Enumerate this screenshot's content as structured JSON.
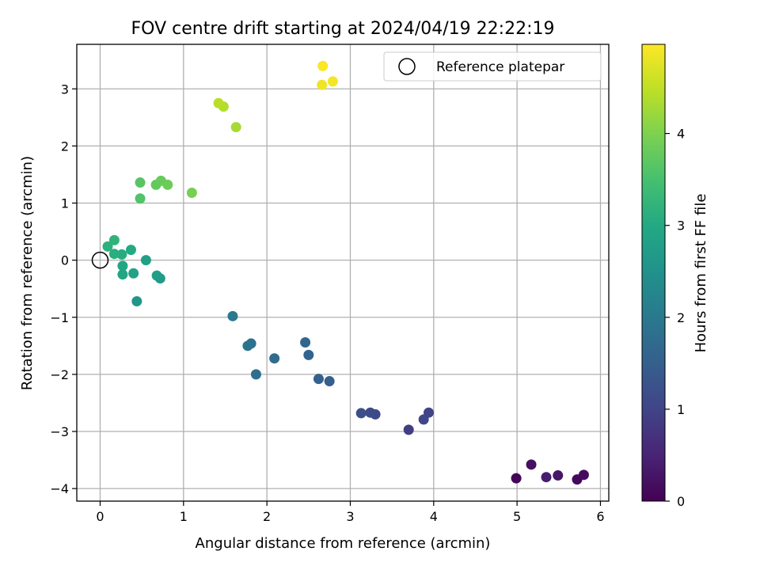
{
  "chart_data": {
    "type": "scatter",
    "title": "FOV centre drift starting at 2024/04/19 22:22:19",
    "xlabel": "Angular distance from reference (arcmin)",
    "ylabel": "Rotation from reference (arcmin)",
    "xlim": [
      -0.28,
      6.1
    ],
    "ylim": [
      -4.22,
      3.78
    ],
    "xticks": [
      0,
      1,
      2,
      3,
      4,
      5,
      6
    ],
    "yticks": [
      -4,
      -3,
      -2,
      -1,
      0,
      1,
      2,
      3
    ],
    "xtick_labels": [
      "0",
      "1",
      "2",
      "3",
      "4",
      "5",
      "6"
    ],
    "ytick_labels": [
      "−4",
      "−3",
      "−2",
      "−1",
      "0",
      "1",
      "2",
      "3"
    ],
    "grid": true,
    "colormap": "viridis",
    "colorbar": {
      "label": "Hours from first FF file",
      "range": [
        0,
        4.97
      ],
      "ticks": [
        0,
        1,
        2,
        3,
        4
      ],
      "tick_labels": [
        "0",
        "1",
        "2",
        "3",
        "4"
      ]
    },
    "legend": {
      "placement": "top-right",
      "entries": [
        {
          "label": "Reference platepar",
          "marker": "open-circle",
          "x": 0,
          "y": 0
        }
      ]
    },
    "points": [
      {
        "x": 4.99,
        "y": -3.82,
        "c": 0.05
      },
      {
        "x": 5.72,
        "y": -3.84,
        "c": 0.1
      },
      {
        "x": 5.8,
        "y": -3.76,
        "c": 0.15
      },
      {
        "x": 5.17,
        "y": -3.58,
        "c": 0.2
      },
      {
        "x": 5.49,
        "y": -3.77,
        "c": 0.3
      },
      {
        "x": 5.35,
        "y": -3.8,
        "c": 0.4
      },
      {
        "x": 3.7,
        "y": -2.97,
        "c": 0.9
      },
      {
        "x": 3.94,
        "y": -2.67,
        "c": 1.0
      },
      {
        "x": 3.88,
        "y": -2.79,
        "c": 1.05
      },
      {
        "x": 3.3,
        "y": -2.7,
        "c": 1.1
      },
      {
        "x": 3.24,
        "y": -2.67,
        "c": 1.15
      },
      {
        "x": 3.13,
        "y": -2.68,
        "c": 1.2
      },
      {
        "x": 2.75,
        "y": -2.12,
        "c": 1.5
      },
      {
        "x": 2.62,
        "y": -2.08,
        "c": 1.55
      },
      {
        "x": 2.5,
        "y": -1.66,
        "c": 1.6
      },
      {
        "x": 2.46,
        "y": -1.44,
        "c": 1.65
      },
      {
        "x": 2.09,
        "y": -1.72,
        "c": 1.75
      },
      {
        "x": 1.87,
        "y": -2.0,
        "c": 1.8
      },
      {
        "x": 1.81,
        "y": -1.46,
        "c": 1.85
      },
      {
        "x": 1.77,
        "y": -1.5,
        "c": 1.9
      },
      {
        "x": 1.59,
        "y": -0.98,
        "c": 2.0
      },
      {
        "x": 0.44,
        "y": -0.72,
        "c": 2.6
      },
      {
        "x": 0.72,
        "y": -0.32,
        "c": 2.7
      },
      {
        "x": 0.68,
        "y": -0.27,
        "c": 2.75
      },
      {
        "x": 0.55,
        "y": 0.0,
        "c": 2.8
      },
      {
        "x": 0.4,
        "y": -0.23,
        "c": 2.85
      },
      {
        "x": 0.27,
        "y": -0.25,
        "c": 2.9
      },
      {
        "x": 0.27,
        "y": -0.1,
        "c": 2.95
      },
      {
        "x": 0.37,
        "y": 0.18,
        "c": 3.0
      },
      {
        "x": 0.26,
        "y": 0.1,
        "c": 3.05
      },
      {
        "x": 0.17,
        "y": 0.11,
        "c": 3.1
      },
      {
        "x": 0.09,
        "y": 0.24,
        "c": 3.15
      },
      {
        "x": 0.17,
        "y": 0.35,
        "c": 3.2
      },
      {
        "x": 0.48,
        "y": 1.08,
        "c": 3.6
      },
      {
        "x": 0.48,
        "y": 1.36,
        "c": 3.65
      },
      {
        "x": 0.67,
        "y": 1.32,
        "c": 3.75
      },
      {
        "x": 0.73,
        "y": 1.39,
        "c": 3.8
      },
      {
        "x": 0.81,
        "y": 1.32,
        "c": 3.85
      },
      {
        "x": 1.1,
        "y": 1.18,
        "c": 3.95
      },
      {
        "x": 1.63,
        "y": 2.33,
        "c": 4.3
      },
      {
        "x": 1.48,
        "y": 2.69,
        "c": 4.4
      },
      {
        "x": 1.42,
        "y": 2.75,
        "c": 4.45
      },
      {
        "x": 2.66,
        "y": 3.07,
        "c": 4.85
      },
      {
        "x": 2.79,
        "y": 3.13,
        "c": 4.9
      },
      {
        "x": 2.67,
        "y": 3.4,
        "c": 4.95
      }
    ]
  }
}
